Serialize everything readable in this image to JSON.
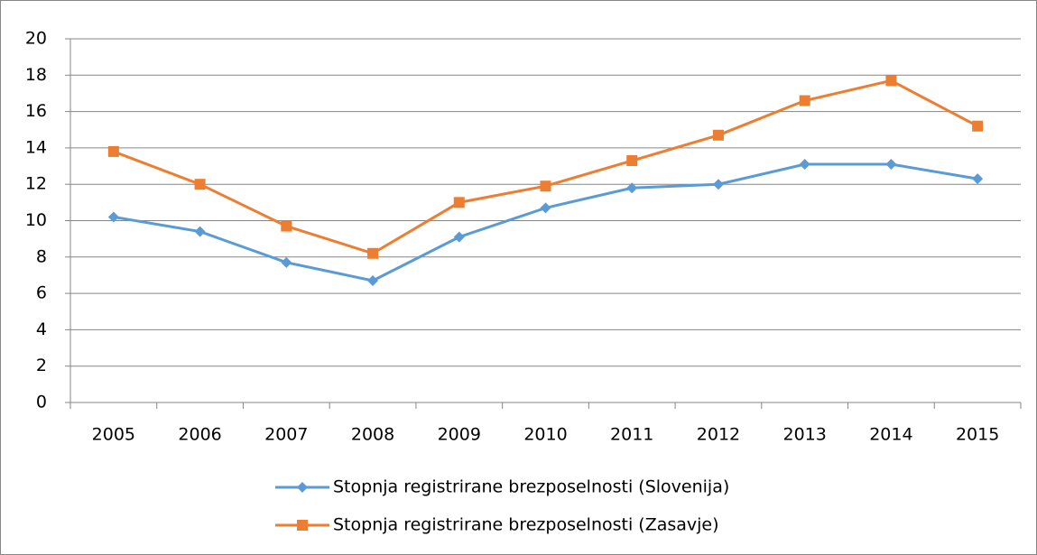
{
  "chart_data": {
    "type": "line",
    "categories": [
      "2005",
      "2006",
      "2007",
      "2008",
      "2009",
      "2010",
      "2011",
      "2012",
      "2013",
      "2014",
      "2015"
    ],
    "series": [
      {
        "name": "Stopnja registrirane brezposelnosti (Slovenija)",
        "color": "#5b9bd5",
        "marker": "diamond",
        "values": [
          10.2,
          9.4,
          7.7,
          6.7,
          9.1,
          10.7,
          11.8,
          12.0,
          13.1,
          13.1,
          12.3
        ]
      },
      {
        "name": "Stopnja registrirane brezposelnosti (Zasavje)",
        "color": "#ed7d31",
        "marker": "square",
        "values": [
          13.8,
          12.0,
          9.7,
          8.2,
          11.0,
          11.9,
          13.3,
          14.7,
          16.6,
          17.7,
          15.2
        ]
      }
    ],
    "ylim": [
      0,
      20
    ],
    "yticks": [
      0,
      2,
      4,
      6,
      8,
      10,
      12,
      14,
      16,
      18,
      20
    ],
    "grid": true,
    "legend": "bottom"
  }
}
